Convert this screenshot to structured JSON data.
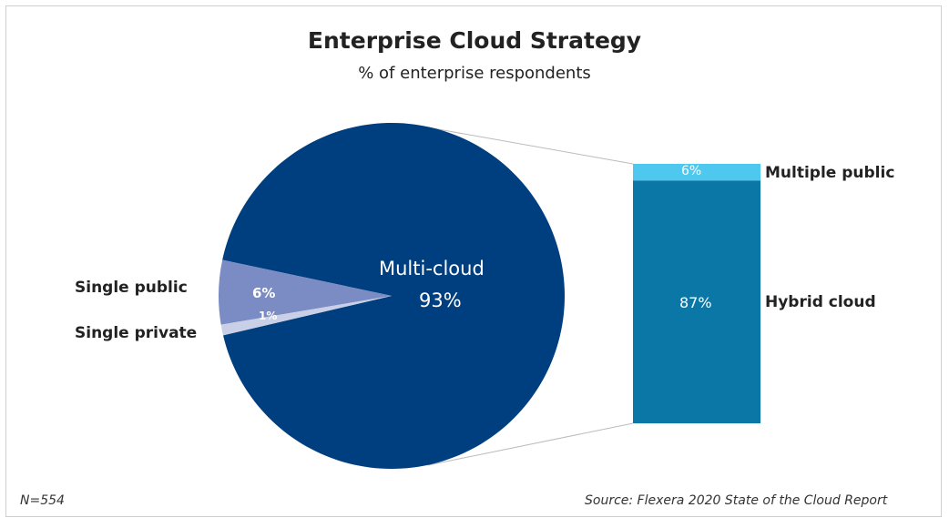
{
  "chart_data": {
    "type": "pie",
    "title": "Enterprise Cloud Strategy",
    "subtitle": "% of enterprise respondents",
    "pie": {
      "slices": [
        {
          "name": "Multi-cloud",
          "value": 93,
          "label": "93%",
          "color": "#003f7f"
        },
        {
          "name": "Single public",
          "value": 6,
          "label": "6%",
          "color": "#7b8cc4"
        },
        {
          "name": "Single private",
          "value": 1,
          "label": "1%",
          "color": "#c9cfe6"
        }
      ]
    },
    "breakdown_bar": {
      "of": "Multi-cloud",
      "segments": [
        {
          "name": "Multiple public",
          "value": 6,
          "label": "6%",
          "color": "#4fc8f0"
        },
        {
          "name": "Hybrid cloud",
          "value": 87,
          "label": "87%",
          "color": "#0a77a6"
        }
      ]
    },
    "note": "N=554",
    "source": "Source: Flexera 2020 State of the Cloud Report"
  }
}
